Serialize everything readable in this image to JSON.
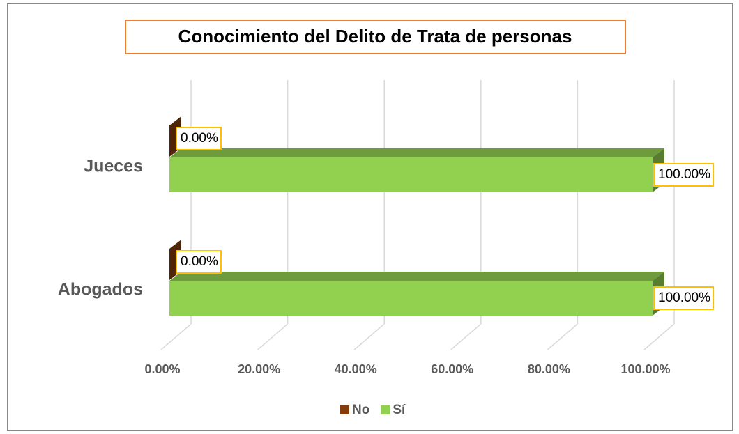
{
  "chart_data": {
    "type": "bar3d_horizontal",
    "title": "Conocimiento del Delito de Trata de personas",
    "categories": [
      "Jueces",
      "Abogados"
    ],
    "series": [
      {
        "name": "No",
        "color": "#843c0c",
        "values": [
          0,
          0
        ],
        "value_labels": [
          "0.00%",
          "0.00%"
        ]
      },
      {
        "name": "Sí",
        "color": "#92d050",
        "values": [
          100,
          100
        ],
        "value_labels": [
          "100.00%",
          "100.00%"
        ]
      }
    ],
    "xlim": [
      0,
      100
    ],
    "xticks": [
      {
        "value": 0,
        "label": "0.00%"
      },
      {
        "value": 20,
        "label": "20.00%"
      },
      {
        "value": 40,
        "label": "40.00%"
      },
      {
        "value": 60,
        "label": "60.00%"
      },
      {
        "value": 80,
        "label": "80.00%"
      },
      {
        "value": 100,
        "label": "100.00%"
      }
    ],
    "grid": true,
    "legend": "bottom"
  }
}
